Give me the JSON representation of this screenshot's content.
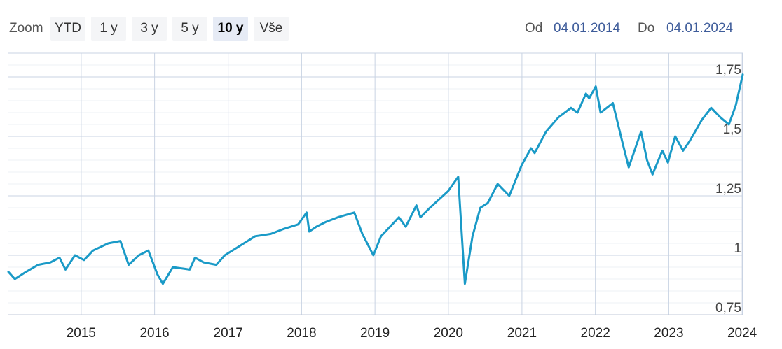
{
  "toolbar": {
    "zoom_label": "Zoom",
    "buttons": [
      {
        "label": "YTD",
        "active": false
      },
      {
        "label": "1 y",
        "active": false
      },
      {
        "label": "3 y",
        "active": false
      },
      {
        "label": "5 y",
        "active": false
      },
      {
        "label": "10 y",
        "active": true
      },
      {
        "label": "Vše",
        "active": false
      }
    ],
    "from_label": "Od",
    "from_value": "04.01.2014",
    "to_label": "Do",
    "to_value": "04.01.2024"
  },
  "colors": {
    "line": "#1a9ac7",
    "grid": "#c9d3e3",
    "minor_grid": "#eef1f6",
    "accent_text": "#3e5c9a"
  },
  "chart_data": {
    "type": "line",
    "title": "",
    "xlabel": "",
    "ylabel": "",
    "xlim": [
      "2014-01-04",
      "2024-01-04"
    ],
    "ylim": [
      0.75,
      1.85
    ],
    "y_ticks": [
      0.75,
      1,
      1.25,
      1.5,
      1.75
    ],
    "y_tick_labels": [
      "0,75",
      "1",
      "1,25",
      "1,5",
      "1,75"
    ],
    "x_ticks": [
      "2015-01-01",
      "2016-01-01",
      "2017-01-01",
      "2018-01-01",
      "2019-01-01",
      "2020-01-01",
      "2021-01-01",
      "2022-01-01",
      "2023-01-01",
      "2024-01-01"
    ],
    "x_tick_labels": [
      "2015",
      "2016",
      "2017",
      "2018",
      "2019",
      "2020",
      "2021",
      "2022",
      "2023",
      "2024"
    ],
    "grid": true,
    "legend": "none",
    "series": [
      {
        "x": [
          "2014-01-04",
          "2014-02-05",
          "2014-04-01",
          "2014-06-01",
          "2014-08-01",
          "2014-09-15",
          "2014-10-15",
          "2014-12-01",
          "2015-01-15",
          "2015-03-01",
          "2015-05-15",
          "2015-07-15",
          "2015-08-25",
          "2015-10-15",
          "2015-12-01",
          "2016-01-15",
          "2016-02-11",
          "2016-04-01",
          "2016-06-24",
          "2016-07-20",
          "2016-09-01",
          "2016-11-03",
          "2016-12-15",
          "2017-03-01",
          "2017-05-15",
          "2017-08-01",
          "2017-10-01",
          "2017-12-15",
          "2018-01-26",
          "2018-02-08",
          "2018-03-15",
          "2018-05-01",
          "2018-07-01",
          "2018-09-20",
          "2018-10-30",
          "2018-12-24",
          "2019-01-31",
          "2019-04-30",
          "2019-06-03",
          "2019-07-26",
          "2019-08-15",
          "2019-10-01",
          "2019-12-31",
          "2020-02-19",
          "2020-03-23",
          "2020-04-30",
          "2020-06-08",
          "2020-07-15",
          "2020-09-02",
          "2020-10-30",
          "2020-12-31",
          "2021-02-15",
          "2021-03-05",
          "2021-05-01",
          "2021-07-01",
          "2021-09-02",
          "2021-10-04",
          "2021-11-15",
          "2021-12-01",
          "2022-01-03",
          "2022-01-27",
          "2022-03-29",
          "2022-05-20",
          "2022-06-16",
          "2022-08-16",
          "2022-09-15",
          "2022-10-12",
          "2022-11-30",
          "2022-12-28",
          "2023-02-02",
          "2023-03-13",
          "2023-04-15",
          "2023-06-15",
          "2023-07-31",
          "2023-09-15",
          "2023-10-27",
          "2023-11-30",
          "2024-01-04"
        ],
        "values": [
          0.93,
          0.9,
          0.93,
          0.96,
          0.97,
          0.99,
          0.94,
          1.0,
          0.98,
          1.02,
          1.05,
          1.06,
          0.96,
          1.0,
          1.02,
          0.92,
          0.88,
          0.95,
          0.94,
          0.99,
          0.97,
          0.96,
          1.0,
          1.04,
          1.08,
          1.09,
          1.11,
          1.13,
          1.18,
          1.1,
          1.12,
          1.14,
          1.16,
          1.18,
          1.09,
          1.0,
          1.08,
          1.16,
          1.12,
          1.21,
          1.16,
          1.2,
          1.27,
          1.33,
          0.88,
          1.08,
          1.2,
          1.22,
          1.3,
          1.25,
          1.38,
          1.45,
          1.43,
          1.52,
          1.58,
          1.62,
          1.6,
          1.68,
          1.66,
          1.71,
          1.6,
          1.64,
          1.46,
          1.37,
          1.52,
          1.4,
          1.34,
          1.44,
          1.39,
          1.5,
          1.44,
          1.48,
          1.57,
          1.62,
          1.58,
          1.55,
          1.63,
          1.76
        ]
      }
    ]
  }
}
